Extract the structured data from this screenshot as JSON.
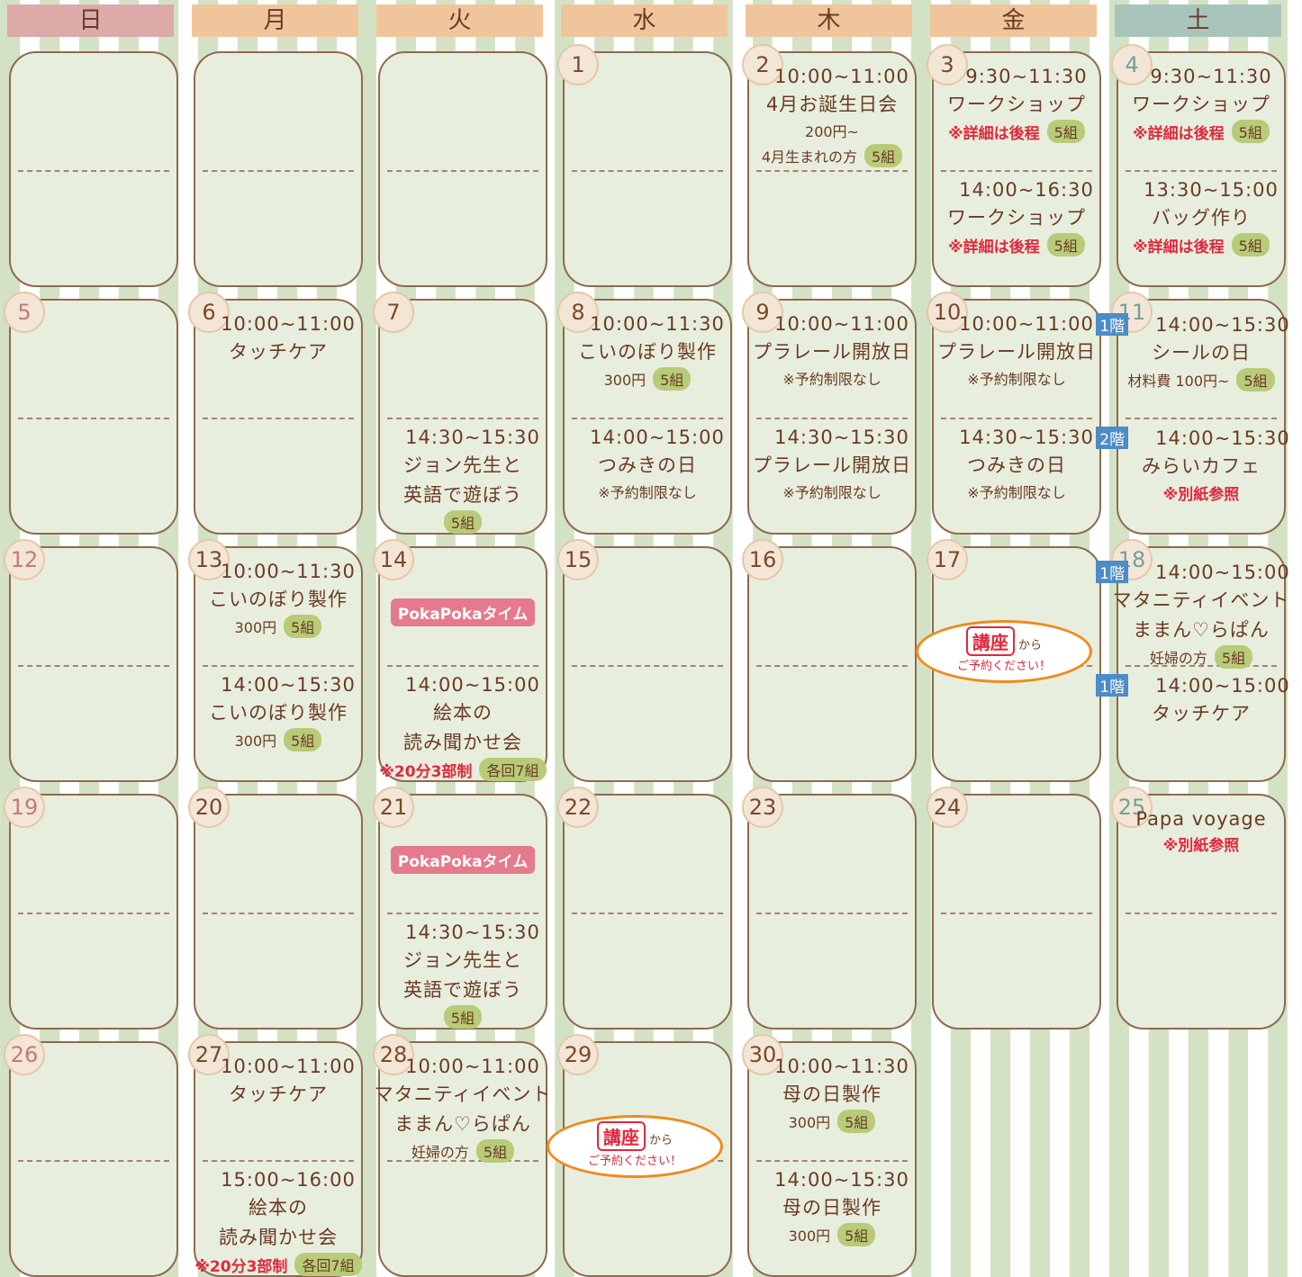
{
  "header": [
    "日",
    "月",
    "火",
    "水",
    "木",
    "金",
    "土"
  ],
  "weeks": [
    [
      null,
      null,
      null,
      {
        "date": "1"
      },
      {
        "date": "2",
        "top": [
          {
            "time": "10:00~11:00"
          },
          {
            "title": "4月お誕生日会"
          },
          {
            "note": "200円~"
          },
          {
            "note": "4月生まれの方",
            "capacity": "5組"
          }
        ]
      },
      {
        "date": "3",
        "top": [
          {
            "time": "9:30~11:30"
          },
          {
            "title": "ワークショップ"
          },
          {
            "alert": "※詳細は後程",
            "capacity": "5組"
          }
        ],
        "bottom": [
          {
            "time": "14:00~16:30"
          },
          {
            "title": "ワークショップ"
          },
          {
            "alert": "※詳細は後程",
            "capacity": "5組"
          }
        ]
      },
      {
        "date": "4",
        "top": [
          {
            "time": "9:30~11:30"
          },
          {
            "title": "ワークショップ"
          },
          {
            "alert": "※詳細は後程",
            "capacity": "5組"
          }
        ],
        "bottom": [
          {
            "time": "13:30~15:00"
          },
          {
            "title": "バッグ作り"
          },
          {
            "alert": "※詳細は後程",
            "capacity": "5組"
          }
        ]
      }
    ],
    [
      {
        "date": "5"
      },
      {
        "date": "6",
        "top": [
          {
            "time": "10:00~11:00"
          },
          {
            "title": "タッチケア"
          }
        ]
      },
      {
        "date": "7",
        "bottom": [
          {
            "time": "14:30~15:30"
          },
          {
            "title": "ジョン先生と"
          },
          {
            "title": "英語で遊ぼう"
          },
          {
            "capacity": "5組"
          }
        ]
      },
      {
        "date": "8",
        "top": [
          {
            "time": "10:00~11:30"
          },
          {
            "title": "こいのぼり製作"
          },
          {
            "note": "300円",
            "capacity": "5組"
          }
        ],
        "bottom": [
          {
            "time": "14:00~15:00"
          },
          {
            "title": "つみきの日"
          },
          {
            "note": "※予約制限なし"
          }
        ]
      },
      {
        "date": "9",
        "top": [
          {
            "time": "10:00~11:00"
          },
          {
            "title": "プラレール開放日"
          },
          {
            "note": "※予約制限なし"
          }
        ],
        "bottom": [
          {
            "time": "14:30~15:30"
          },
          {
            "title": "プラレール開放日"
          },
          {
            "note": "※予約制限なし"
          }
        ]
      },
      {
        "date": "10",
        "top": [
          {
            "time": "10:00~11:00"
          },
          {
            "title": "プラレール開放日"
          },
          {
            "note": "※予約制限なし"
          }
        ],
        "bottom": [
          {
            "time": "14:30~15:30"
          },
          {
            "title": "つみきの日"
          },
          {
            "note": "※予約制限なし"
          }
        ]
      },
      {
        "date": "11",
        "top": [
          {
            "floor": "1階",
            "time": "14:00~15:30"
          },
          {
            "title": "シールの日"
          },
          {
            "note": "材料費 100円~",
            "capacity": "5組"
          }
        ],
        "bottom": [
          {
            "floor": "2階",
            "time": "14:00~15:30"
          },
          {
            "title": "みらいカフェ"
          },
          {
            "alert": "※別紙参照"
          }
        ]
      }
    ],
    [
      {
        "date": "12"
      },
      {
        "date": "13",
        "top": [
          {
            "time": "10:00~11:30"
          },
          {
            "title": "こいのぼり製作"
          },
          {
            "note": "300円",
            "capacity": "5組"
          }
        ],
        "bottom": [
          {
            "time": "14:00~15:30"
          },
          {
            "title": "こいのぼり製作"
          },
          {
            "note": "300円",
            "capacity": "5組"
          }
        ]
      },
      {
        "date": "14",
        "top": [
          {
            "logo": "PokaPokaタイム"
          }
        ],
        "bottom": [
          {
            "time": "14:00~15:00"
          },
          {
            "title": "絵本の"
          },
          {
            "title": "読み聞かせ会"
          },
          {
            "alert": "※20分3部制",
            "capacity": "各回7組"
          }
        ]
      },
      {
        "date": "15"
      },
      {
        "date": "16"
      },
      {
        "date": "17",
        "callout": {
          "badge": "講座",
          "text": "から",
          "sub": "ご予約ください！"
        }
      },
      {
        "date": "18",
        "top": [
          {
            "floor": "1階",
            "time": "14:00~15:00"
          },
          {
            "title": "マタニティイベント"
          },
          {
            "title": "ままん♡らぱん"
          },
          {
            "note": "妊婦の方",
            "capacity": "5組"
          }
        ],
        "bottom": [
          {
            "floor": "1階",
            "time": "14:00~15:00"
          },
          {
            "title": "タッチケア"
          }
        ]
      }
    ],
    [
      {
        "date": "19"
      },
      {
        "date": "20"
      },
      {
        "date": "21",
        "top": [
          {
            "logo": "PokaPokaタイム"
          }
        ],
        "bottom": [
          {
            "time": "14:30~15:30"
          },
          {
            "title": "ジョン先生と"
          },
          {
            "title": "英語で遊ぼう"
          },
          {
            "capacity": "5組"
          }
        ]
      },
      {
        "date": "22"
      },
      {
        "date": "23"
      },
      {
        "date": "24"
      },
      {
        "date": "25",
        "top": [
          {
            "title": "Papa voyage"
          },
          {
            "alert": "※別紙参照"
          }
        ]
      }
    ],
    [
      {
        "date": "26"
      },
      {
        "date": "27",
        "top": [
          {
            "time": "10:00~11:00"
          },
          {
            "title": "タッチケア"
          }
        ],
        "bottom": [
          {
            "time": "15:00~16:00"
          },
          {
            "title": "絵本の"
          },
          {
            "title": "読み聞かせ会"
          },
          {
            "alert": "※20分3部制",
            "capacity": "各回7組"
          }
        ]
      },
      {
        "date": "28",
        "top": [
          {
            "time": "10:00~11:00"
          },
          {
            "title": "マタニティイベント"
          },
          {
            "title": "ままん♡らぱん"
          },
          {
            "note": "妊婦の方",
            "capacity": "5組"
          }
        ]
      },
      {
        "date": "29",
        "callout": {
          "badge": "講座",
          "text": "から",
          "sub": "ご予約ください！"
        }
      },
      {
        "date": "30",
        "top": [
          {
            "time": "10:00~11:30"
          },
          {
            "title": "母の日製作"
          },
          {
            "note": "300円",
            "capacity": "5組"
          }
        ],
        "bottom": [
          {
            "time": "14:00~15:30"
          },
          {
            "title": "母の日製作"
          },
          {
            "note": "300円",
            "capacity": "5組"
          }
        ]
      }
    ]
  ]
}
